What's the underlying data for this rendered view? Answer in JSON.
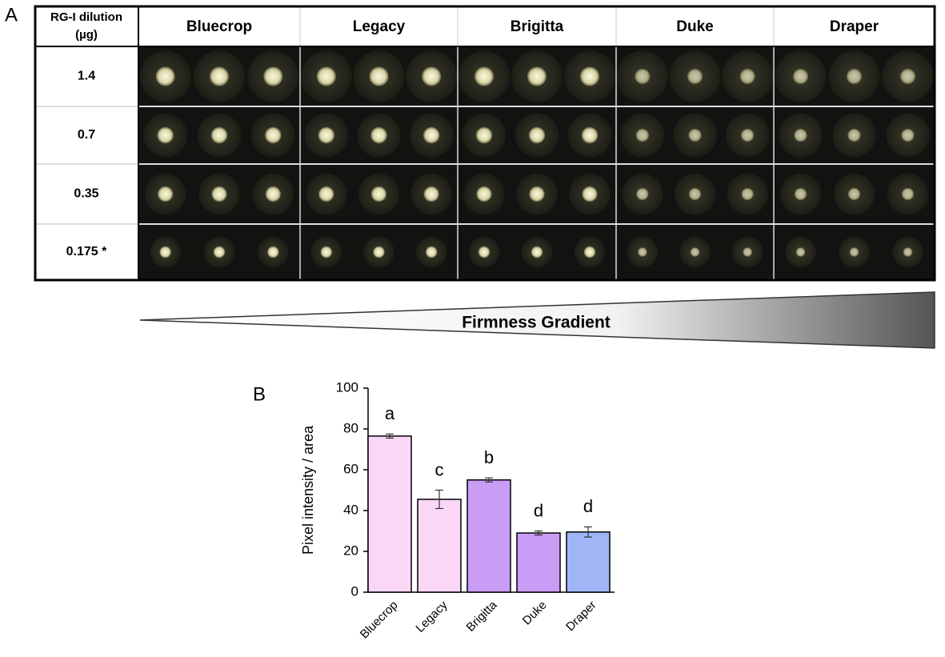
{
  "panel_a": {
    "label": "A",
    "header_lines": [
      "RG-I dilution",
      "(µg)"
    ],
    "columns": [
      "Bluecrop",
      "Legacy",
      "Brigitta",
      "Duke",
      "Draper"
    ],
    "rows": [
      "1.4",
      "0.7",
      "0.35",
      "0.175 *"
    ],
    "gradient_label": "Firmness Gradient"
  },
  "chart_data": {
    "type": "bar",
    "panel_label": "B",
    "y_label": "Pixel intensity / area",
    "categories": [
      "Bluecrop",
      "Legacy",
      "Brigitta",
      "Duke",
      "Draper"
    ],
    "values": [
      76.5,
      45.5,
      55,
      29,
      29.5
    ],
    "errors": [
      1,
      4.5,
      1,
      1,
      2.5
    ],
    "annotations": [
      "a",
      "c",
      "b",
      "d",
      "d"
    ],
    "colors": [
      "#fad7f7",
      "#fad7f7",
      "#c99cf6",
      "#c99cf6",
      "#9fb5f6"
    ],
    "ylim": [
      0,
      100
    ],
    "yticks": [
      0,
      20,
      40,
      60,
      80,
      100
    ]
  }
}
